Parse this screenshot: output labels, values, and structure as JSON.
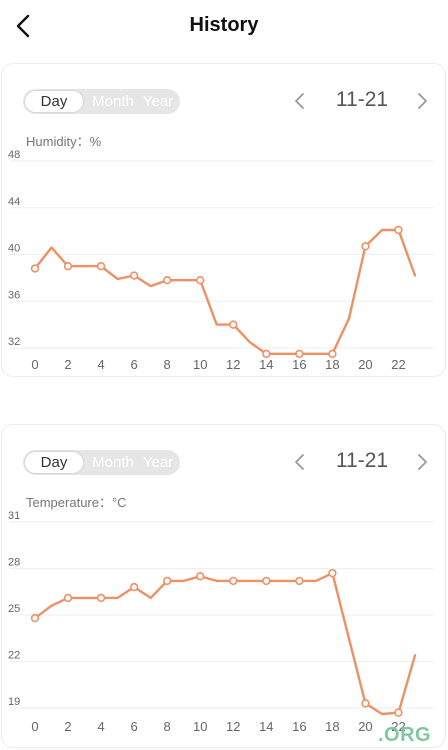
{
  "header": {
    "title": "History",
    "back_icon": "chevron-left-icon"
  },
  "cards": [
    {
      "range_tabs": [
        "Day",
        "Month",
        "Year"
      ],
      "selected_tab": "Day",
      "date": "11-21",
      "metric_label": "Humidity：%"
    },
    {
      "range_tabs": [
        "Day",
        "Month",
        "Year"
      ],
      "selected_tab": "Day",
      "date": "11-21",
      "metric_label": "Temperature：°C"
    }
  ],
  "colors": {
    "line": "#ee9066",
    "grid": "#eeeeee",
    "tick": "#666666"
  },
  "watermark": ".ORG",
  "chart_data": [
    {
      "type": "line",
      "title": "",
      "xlabel": "",
      "ylabel": "Humidity：%",
      "xlim": [
        0,
        23
      ],
      "ylim": [
        32,
        48
      ],
      "x_ticks": [
        "0",
        "2",
        "4",
        "6",
        "8",
        "10",
        "12",
        "14",
        "16",
        "18",
        "20",
        "22"
      ],
      "y_ticks": [
        "48",
        "44",
        "40",
        "36",
        "32"
      ],
      "grid": true,
      "series": [
        {
          "x": [
            0,
            1,
            2,
            3,
            4,
            5,
            6,
            7,
            8,
            9,
            10,
            11,
            12,
            13,
            14,
            15,
            16,
            17,
            18,
            19,
            20,
            21,
            22,
            23
          ],
          "y": [
            38.8,
            40.6,
            39.0,
            39.0,
            39.0,
            37.9,
            38.2,
            37.3,
            37.8,
            37.8,
            37.8,
            34.0,
            34.0,
            32.5,
            31.5,
            31.5,
            31.5,
            31.5,
            31.5,
            34.5,
            40.7,
            42.1,
            42.1,
            38.2
          ],
          "markers_at": [
            0,
            2,
            4,
            6,
            8,
            10,
            12,
            14,
            16,
            18,
            20,
            22
          ]
        }
      ]
    },
    {
      "type": "line",
      "title": "",
      "xlabel": "",
      "ylabel": "Temperature：°C",
      "xlim": [
        0,
        23
      ],
      "ylim": [
        19,
        31
      ],
      "x_ticks": [
        "0",
        "2",
        "4",
        "6",
        "8",
        "10",
        "12",
        "14",
        "16",
        "18",
        "20",
        "22"
      ],
      "y_ticks": [
        "31",
        "28",
        "25",
        "22",
        "19"
      ],
      "grid": true,
      "series": [
        {
          "x": [
            0,
            1,
            2,
            3,
            4,
            5,
            6,
            7,
            8,
            9,
            10,
            11,
            12,
            13,
            14,
            15,
            16,
            17,
            18,
            19,
            20,
            21,
            22,
            23
          ],
          "y": [
            24.8,
            25.6,
            26.1,
            26.1,
            26.1,
            26.1,
            26.8,
            26.1,
            27.2,
            27.2,
            27.5,
            27.2,
            27.2,
            27.2,
            27.2,
            27.2,
            27.2,
            27.2,
            27.7,
            23.5,
            19.3,
            18.6,
            18.7,
            22.4
          ],
          "markers_at": [
            0,
            2,
            4,
            6,
            8,
            10,
            12,
            14,
            16,
            18,
            20,
            22
          ]
        }
      ]
    }
  ]
}
